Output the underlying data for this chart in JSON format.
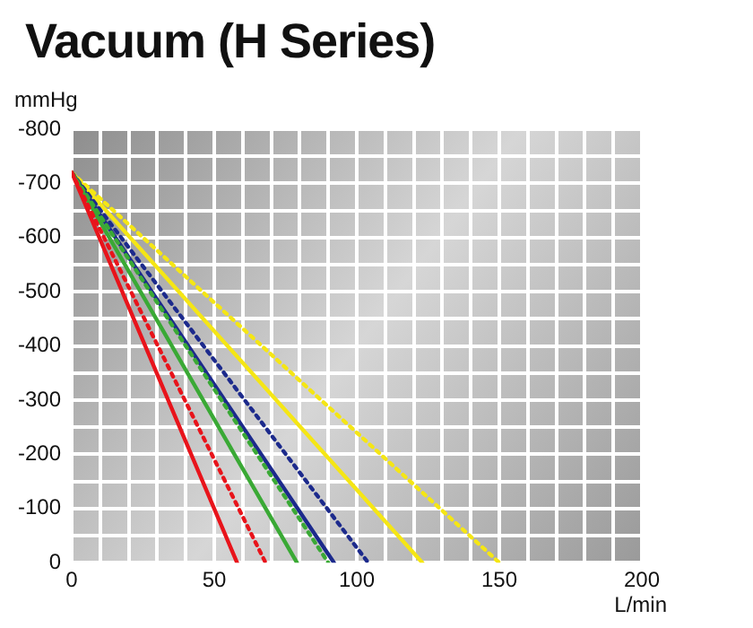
{
  "chart_data": {
    "type": "line",
    "title": "Vacuum (H Series)",
    "xlabel": "L/min",
    "ylabel": "mmHg",
    "xlim": [
      0,
      200
    ],
    "ylim": [
      0,
      -800
    ],
    "xticks": [
      0,
      {
        "value": 10,
        "label": null
      },
      {
        "value": 20,
        "label": null
      },
      {
        "value": 30,
        "label": null
      },
      {
        "value": 40,
        "label": null
      },
      50,
      {
        "value": 60,
        "label": null
      },
      {
        "value": 70,
        "label": null
      },
      {
        "value": 80,
        "label": null
      },
      {
        "value": 90,
        "label": null
      },
      100,
      {
        "value": 110,
        "label": null
      },
      {
        "value": 120,
        "label": null
      },
      {
        "value": 130,
        "label": null
      },
      {
        "value": 140,
        "label": null
      },
      150,
      {
        "value": 160,
        "label": null
      },
      {
        "value": 170,
        "label": null
      },
      {
        "value": 180,
        "label": null
      },
      {
        "value": 190,
        "label": null
      },
      200
    ],
    "yticks": [
      0,
      {
        "value": -50,
        "label": null
      },
      -100,
      {
        "value": -150,
        "label": null
      },
      -200,
      {
        "value": -250,
        "label": null
      },
      -300,
      {
        "value": -350,
        "label": null
      },
      -400,
      {
        "value": -450,
        "label": null
      },
      -500,
      {
        "value": -550,
        "label": null
      },
      -600,
      {
        "value": -650,
        "label": null
      },
      -700,
      {
        "value": -750,
        "label": null
      },
      -800
    ],
    "grid": true,
    "legend": false,
    "marker": "none",
    "series": [
      {
        "color": "#e8141b",
        "line_style": "solid",
        "x": [
          0,
          58
        ],
        "values": [
          -720,
          0
        ]
      },
      {
        "color": "#e8141b",
        "line_style": "dotted",
        "x": [
          0,
          68
        ],
        "values": [
          -720,
          0
        ]
      },
      {
        "color": "#3aa935",
        "line_style": "solid",
        "x": [
          0,
          79
        ],
        "values": [
          -720,
          0
        ]
      },
      {
        "color": "#3aa935",
        "line_style": "dotted",
        "x": [
          0,
          90
        ],
        "values": [
          -720,
          0
        ]
      },
      {
        "color": "#1c2a8c",
        "line_style": "solid",
        "x": [
          0,
          92
        ],
        "values": [
          -720,
          0
        ]
      },
      {
        "color": "#1c2a8c",
        "line_style": "dotted",
        "x": [
          0,
          104
        ],
        "values": [
          -720,
          0
        ]
      },
      {
        "color": "#f5e614",
        "line_style": "solid",
        "x": [
          0,
          123
        ],
        "values": [
          -720,
          0
        ]
      },
      {
        "color": "#f5e614",
        "line_style": "dotted",
        "x": [
          0,
          150
        ],
        "values": [
          -720,
          0
        ]
      }
    ]
  }
}
